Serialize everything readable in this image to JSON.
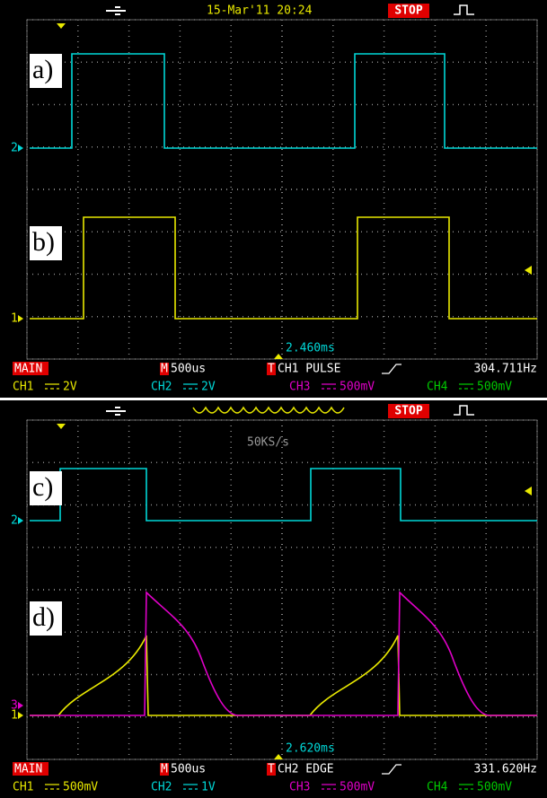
{
  "screens": [
    {
      "header": {
        "datetime": "15-Mar'11 20:24",
        "status": "STOP"
      },
      "labels": [
        "a)",
        "b)"
      ],
      "markers": [
        "2",
        "1"
      ],
      "cursor": "2.460ms",
      "status_row": {
        "mode": "MAIN",
        "m": "M",
        "timebase": "500us",
        "t": "T",
        "trigger": "CH1 PULSE",
        "frequency": "304.711Hz"
      },
      "channels": [
        {
          "name": "CH1",
          "scale": "2V"
        },
        {
          "name": "CH2",
          "scale": "2V"
        },
        {
          "name": "CH3",
          "scale": "500mV"
        },
        {
          "name": "CH4",
          "scale": "500mV"
        }
      ]
    },
    {
      "header": {
        "status": "STOP",
        "sample_rate": "50KS/s"
      },
      "labels": [
        "c)",
        "d)"
      ],
      "markers": [
        "2",
        "3",
        "1"
      ],
      "cursor": "2.620ms",
      "status_row": {
        "mode": "MAIN",
        "m": "M",
        "timebase": "500us",
        "t": "T",
        "trigger": "CH2 EDGE",
        "frequency": "331.620Hz"
      },
      "channels": [
        {
          "name": "CH1",
          "scale": "500mV"
        },
        {
          "name": "CH2",
          "scale": "1V"
        },
        {
          "name": "CH3",
          "scale": "500mV"
        },
        {
          "name": "CH4",
          "scale": "500mV"
        }
      ]
    }
  ]
}
